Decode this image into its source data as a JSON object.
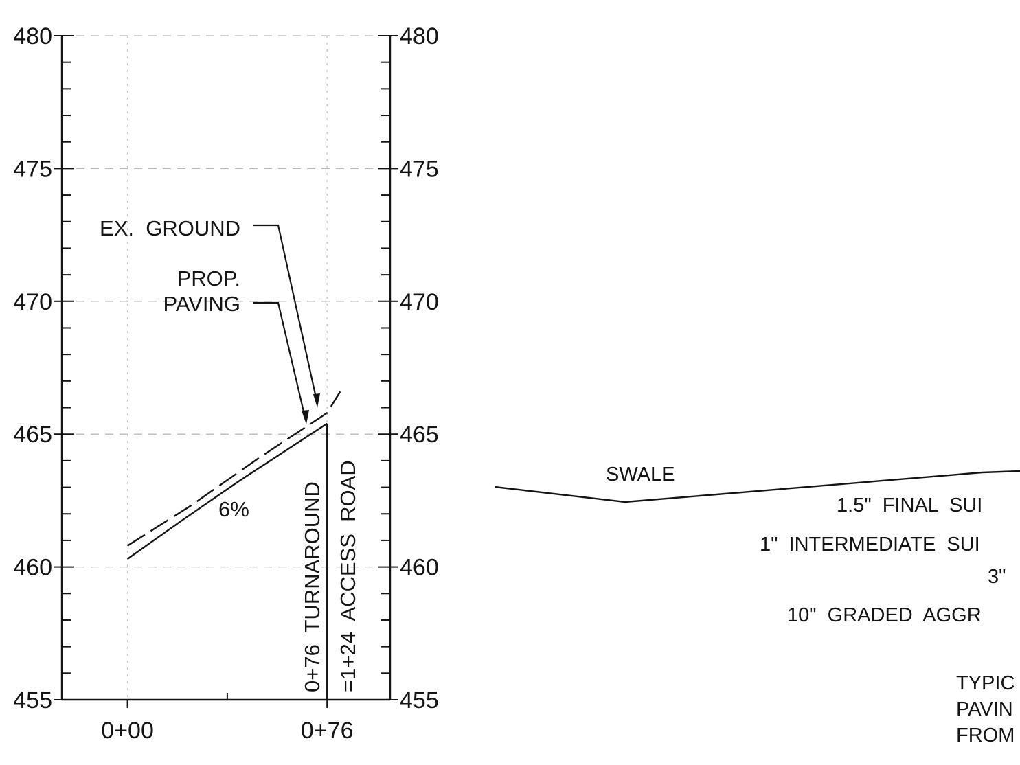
{
  "profile": {
    "left_axis_labels": [
      "480",
      "475",
      "470",
      "465",
      "460",
      "455"
    ],
    "right_axis_labels": [
      "480",
      "475",
      "470",
      "465",
      "460",
      "455"
    ],
    "station_labels": [
      "0+00",
      "0+76"
    ],
    "ex_ground_label": "EX.  GROUND",
    "prop_label_line1": "PROP.",
    "prop_label_line2": "PAVING",
    "grade_label": "6%",
    "station_note_line1": "0+76  TURNAROUND",
    "station_note_line2": "=1+24  ACCESS  ROAD"
  },
  "section": {
    "swale_label": "SWALE",
    "layers": [
      "1.5\"  FINAL  SUI",
      "1\"  INTERMEDIATE  SUI",
      "3\"",
      "10\"  GRADED  AGGR"
    ],
    "note_lines": [
      "TYPIC",
      "PAVIN",
      "FROM"
    ]
  },
  "chart_data": {
    "type": "line",
    "x_unit": "station (ft)",
    "y_unit": "elevation (ft)",
    "xlim": [
      -25,
      100
    ],
    "ylim": [
      455,
      480
    ],
    "x_ticks": [
      0,
      76
    ],
    "x_tick_labels": [
      "0+00",
      "0+76"
    ],
    "y_ticks": [
      455,
      460,
      465,
      470,
      475,
      480
    ],
    "series": [
      {
        "name": "EX.  GROUND",
        "style": "dashed",
        "points": [
          [
            0,
            460.8
          ],
          [
            24,
            462.3
          ],
          [
            50,
            464.1
          ],
          [
            76,
            465.8
          ],
          [
            81,
            466.6
          ]
        ]
      },
      {
        "name": "PROP.  PAVING",
        "style": "solid",
        "points": [
          [
            0,
            460.3
          ],
          [
            20,
            461.7
          ],
          [
            42,
            463.2
          ],
          [
            76,
            465.4
          ]
        ]
      }
    ]
  }
}
